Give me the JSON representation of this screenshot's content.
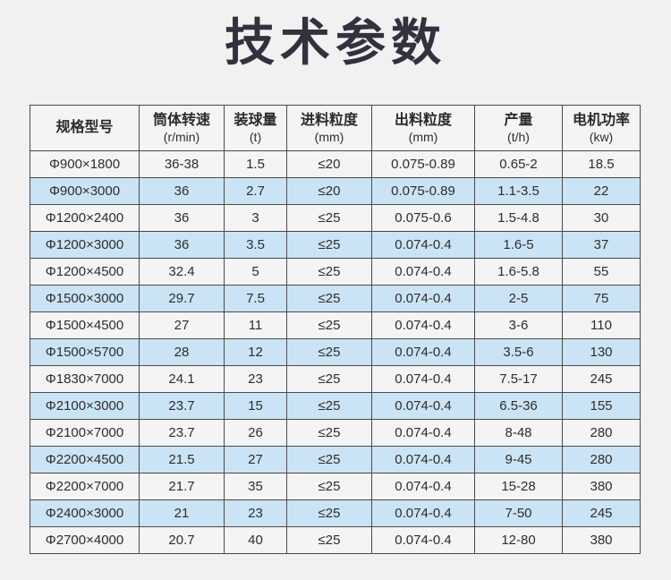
{
  "page": {
    "title": "技术参数",
    "background_color": "#f1f1f2",
    "title_color": "#32323e"
  },
  "table": {
    "row_color": "#f4f4f4",
    "row_alt_color": "#cbe4f5",
    "border_color": "#4a4a4a",
    "columns": [
      {
        "id": "spec-model",
        "label": "规格型号",
        "unit": ""
      },
      {
        "id": "cylinder-speed",
        "label": "筒体转速",
        "unit": "(r/min)"
      },
      {
        "id": "ball-load",
        "label": "装球量",
        "unit": "(t)"
      },
      {
        "id": "feed-size",
        "label": "进料粒度",
        "unit": "(mm)"
      },
      {
        "id": "discharge-size",
        "label": "出料粒度",
        "unit": "(mm)"
      },
      {
        "id": "capacity",
        "label": "产量",
        "unit": "(t/h)"
      },
      {
        "id": "motor-power",
        "label": "电机功率",
        "unit": "(kw)"
      }
    ],
    "rows": [
      [
        "Φ900×1800",
        "36-38",
        "1.5",
        "≤20",
        "0.075-0.89",
        "0.65-2",
        "18.5"
      ],
      [
        "Φ900×3000",
        "36",
        "2.7",
        "≤20",
        "0.075-0.89",
        "1.1-3.5",
        "22"
      ],
      [
        "Φ1200×2400",
        "36",
        "3",
        "≤25",
        "0.075-0.6",
        "1.5-4.8",
        "30"
      ],
      [
        "Φ1200×3000",
        "36",
        "3.5",
        "≤25",
        "0.074-0.4",
        "1.6-5",
        "37"
      ],
      [
        "Φ1200×4500",
        "32.4",
        "5",
        "≤25",
        "0.074-0.4",
        "1.6-5.8",
        "55"
      ],
      [
        "Φ1500×3000",
        "29.7",
        "7.5",
        "≤25",
        "0.074-0.4",
        "2-5",
        "75"
      ],
      [
        "Φ1500×4500",
        "27",
        "11",
        "≤25",
        "0.074-0.4",
        "3-6",
        "110"
      ],
      [
        "Φ1500×5700",
        "28",
        "12",
        "≤25",
        "0.074-0.4",
        "3.5-6",
        "130"
      ],
      [
        "Φ1830×7000",
        "24.1",
        "23",
        "≤25",
        "0.074-0.4",
        "7.5-17",
        "245"
      ],
      [
        "Φ2100×3000",
        "23.7",
        "15",
        "≤25",
        "0.074-0.4",
        "6.5-36",
        "155"
      ],
      [
        "Φ2100×7000",
        "23.7",
        "26",
        "≤25",
        "0.074-0.4",
        "8-48",
        "280"
      ],
      [
        "Φ2200×4500",
        "21.5",
        "27",
        "≤25",
        "0.074-0.4",
        "9-45",
        "280"
      ],
      [
        "Φ2200×7000",
        "21.7",
        "35",
        "≤25",
        "0.074-0.4",
        "15-28",
        "380"
      ],
      [
        "Φ2400×3000",
        "21",
        "23",
        "≤25",
        "0.074-0.4",
        "7-50",
        "245"
      ],
      [
        "Φ2700×4000",
        "20.7",
        "40",
        "≤25",
        "0.074-0.4",
        "12-80",
        "380"
      ]
    ]
  }
}
